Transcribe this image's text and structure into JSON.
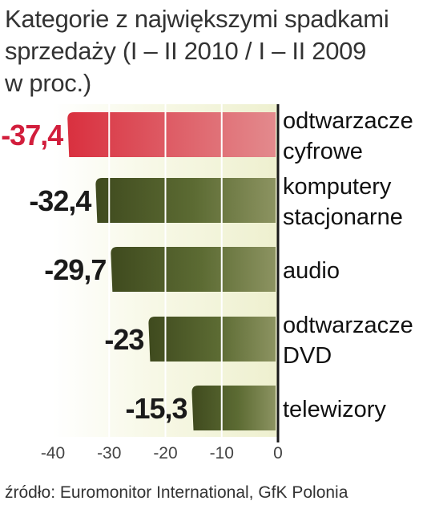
{
  "title_lines": [
    "Kategorie z największymi spadkami",
    "sprzedaży (I – II 2010 / I – II 2009",
    "w proc.)"
  ],
  "source": "źródło: Euromonitor International, GfK Polonia",
  "colors": {
    "highlight_bar": "#d9303f",
    "bar": "#5c6b33",
    "plot_bg": "#eef0cf",
    "axis": "#1a1a1a",
    "highlight_value": "#d21e3c"
  },
  "chart_data": {
    "type": "bar",
    "orientation": "horizontal",
    "title": "Kategorie z największymi spadkami sprzedaży (I – II 2010 / I – II 2009 w proc.)",
    "categories": [
      [
        "odtwarzacze",
        "cyfrowe"
      ],
      [
        "komputery",
        "stacjonarne"
      ],
      [
        "audio"
      ],
      [
        "odtwarzacze",
        "DVD"
      ],
      [
        "telewizory"
      ]
    ],
    "values": [
      -37.4,
      -32.4,
      -29.7,
      -23,
      -15.3
    ],
    "value_labels": [
      "-37,4",
      "-32,4",
      "-29,7",
      "-23",
      "-15,3"
    ],
    "highlighted_index": 0,
    "xlim": [
      -40,
      0
    ],
    "ticks": [
      -40,
      -30,
      -20,
      -10,
      0
    ],
    "tick_labels": [
      "-40",
      "-30",
      "-20",
      "-10",
      "0"
    ],
    "grid": true,
    "xlabel": "",
    "ylabel": ""
  }
}
